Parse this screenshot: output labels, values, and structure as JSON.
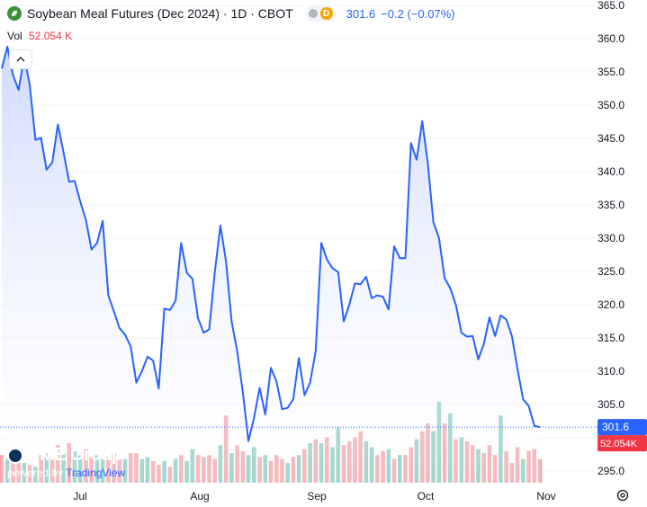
{
  "legend": {
    "title": "Soybean Meal Futures (Dec 2024) · 1D · CBOT",
    "price": "301.6",
    "change": "−0.2 (−0.07%)",
    "pill_letter": "D"
  },
  "volume": {
    "label": "Vol",
    "value": "52.054 K"
  },
  "logo": {
    "name": "CME Group",
    "powered": "powered by",
    "brand": "TradingView"
  },
  "icons": {
    "symbol": "leaf-icon",
    "collapse": "chevron-up-icon",
    "settings": "gear-icon"
  },
  "colors": {
    "line": "#2962ff",
    "area_top": "#c9d6fc",
    "vol_up": "#8ccdc3",
    "vol_down": "#f2a7ad",
    "last_price_bg": "#2962ff",
    "last_vol_bg": "#f23645"
  },
  "chart_data": {
    "type": "area",
    "price_axis": {
      "range": [
        293,
        365.5
      ],
      "ticks": [
        "365.0",
        "360.0",
        "355.0",
        "350.0",
        "345.0",
        "340.0",
        "335.0",
        "330.0",
        "325.0",
        "320.0",
        "315.0",
        "310.0",
        "305.0",
        "300.0",
        "295.0"
      ]
    },
    "time_axis": {
      "labels": [
        "Jul",
        "Aug",
        "Sep",
        "Oct",
        "Nov"
      ]
    },
    "last_price_label": "301.6",
    "last_volume_label": "52.054K",
    "series": [
      {
        "values": [
          355.5,
          358.8,
          354.5,
          352.3,
          357.3,
          353.0,
          344.8,
          345.1,
          340.3,
          341.4,
          347.1,
          343.0,
          338.5,
          338.6,
          335.5,
          332.8,
          328.3,
          329.3,
          332.6,
          321.4,
          319.0,
          316.5,
          315.5,
          313.7,
          308.3,
          310.0,
          312.2,
          311.6,
          307.4,
          319.4,
          319.2,
          320.6,
          329.3,
          324.8,
          323.9,
          318.0,
          315.8,
          316.3,
          324.9,
          331.9,
          326.5,
          317.5,
          313.0,
          306.8,
          299.5,
          303.0,
          307.5,
          303.5,
          310.5,
          308.5,
          304.3,
          304.5,
          305.8,
          312.0,
          306.4,
          308.3,
          313.0,
          329.3,
          326.8,
          325.5,
          324.9,
          317.5,
          320.0,
          323.2,
          323.1,
          324.2,
          321.0,
          321.4,
          321.2,
          319.3,
          328.8,
          327.0,
          327.0,
          344.3,
          341.8,
          347.6,
          341.3,
          332.4,
          330.0,
          324.0,
          322.5,
          320.0,
          315.8,
          315.2,
          315.3,
          311.8,
          314.1,
          318.1,
          315.3,
          318.4,
          317.8,
          315.3,
          310.3,
          305.8,
          304.8,
          301.8,
          301.6
        ]
      }
    ],
    "volume_series": [
      {
        "v": 14,
        "d": 1
      },
      {
        "v": 12,
        "d": 0
      },
      {
        "v": 13,
        "d": 1
      },
      {
        "v": 11,
        "d": 1
      },
      {
        "v": 10,
        "d": 0
      },
      {
        "v": 9,
        "d": 1
      },
      {
        "v": 8,
        "d": 0
      },
      {
        "v": 14,
        "d": 1
      },
      {
        "v": 15,
        "d": 0
      },
      {
        "v": 12,
        "d": 1
      },
      {
        "v": 19,
        "d": 1
      },
      {
        "v": 15,
        "d": 0
      },
      {
        "v": 20,
        "d": 1
      },
      {
        "v": 16,
        "d": 0
      },
      {
        "v": 15,
        "d": 0
      },
      {
        "v": 17,
        "d": 1
      },
      {
        "v": 13,
        "d": 1
      },
      {
        "v": 14,
        "d": 0
      },
      {
        "v": 12,
        "d": 0
      },
      {
        "v": 13,
        "d": 1
      },
      {
        "v": 15,
        "d": 1
      },
      {
        "v": 12,
        "d": 1
      },
      {
        "v": 12,
        "d": 0
      },
      {
        "v": 15,
        "d": 1
      },
      {
        "v": 15,
        "d": 1
      },
      {
        "v": 12,
        "d": 0
      },
      {
        "v": 13,
        "d": 0
      },
      {
        "v": 11,
        "d": 1
      },
      {
        "v": 9,
        "d": 1
      },
      {
        "v": 11,
        "d": 0
      },
      {
        "v": 8,
        "d": 1
      },
      {
        "v": 12,
        "d": 0
      },
      {
        "v": 14,
        "d": 1
      },
      {
        "v": 11,
        "d": 0
      },
      {
        "v": 17,
        "d": 0
      },
      {
        "v": 14,
        "d": 1
      },
      {
        "v": 13,
        "d": 1
      },
      {
        "v": 14,
        "d": 1
      },
      {
        "v": 12,
        "d": 1
      },
      {
        "v": 19,
        "d": 0
      },
      {
        "v": 34,
        "d": 1
      },
      {
        "v": 15,
        "d": 0
      },
      {
        "v": 19,
        "d": 1
      },
      {
        "v": 16,
        "d": 1
      },
      {
        "v": 14,
        "d": 0
      },
      {
        "v": 18,
        "d": 0
      },
      {
        "v": 13,
        "d": 1
      },
      {
        "v": 14,
        "d": 0
      },
      {
        "v": 11,
        "d": 1
      },
      {
        "v": 14,
        "d": 1
      },
      {
        "v": 12,
        "d": 1
      },
      {
        "v": 10,
        "d": 0
      },
      {
        "v": 13,
        "d": 1
      },
      {
        "v": 14,
        "d": 0
      },
      {
        "v": 17,
        "d": 1
      },
      {
        "v": 20,
        "d": 0
      },
      {
        "v": 22,
        "d": 1
      },
      {
        "v": 20,
        "d": 0
      },
      {
        "v": 23,
        "d": 1
      },
      {
        "v": 18,
        "d": 0
      },
      {
        "v": 28,
        "d": 0
      },
      {
        "v": 19,
        "d": 1
      },
      {
        "v": 21,
        "d": 1
      },
      {
        "v": 23,
        "d": 1
      },
      {
        "v": 26,
        "d": 1
      },
      {
        "v": 21,
        "d": 0
      },
      {
        "v": 18,
        "d": 0
      },
      {
        "v": 14,
        "d": 1
      },
      {
        "v": 16,
        "d": 1
      },
      {
        "v": 17,
        "d": 0
      },
      {
        "v": 12,
        "d": 1
      },
      {
        "v": 14,
        "d": 0
      },
      {
        "v": 14,
        "d": 1
      },
      {
        "v": 18,
        "d": 1
      },
      {
        "v": 22,
        "d": 0
      },
      {
        "v": 26,
        "d": 1
      },
      {
        "v": 30,
        "d": 1
      },
      {
        "v": 26,
        "d": 0
      },
      {
        "v": 41,
        "d": 0
      },
      {
        "v": 30,
        "d": 1
      },
      {
        "v": 35,
        "d": 0
      },
      {
        "v": 22,
        "d": 1
      },
      {
        "v": 23,
        "d": 0
      },
      {
        "v": 21,
        "d": 1
      },
      {
        "v": 19,
        "d": 1
      },
      {
        "v": 17,
        "d": 0
      },
      {
        "v": 15,
        "d": 1
      },
      {
        "v": 19,
        "d": 1
      },
      {
        "v": 14,
        "d": 1
      },
      {
        "v": 34,
        "d": 0
      },
      {
        "v": 16,
        "d": 1
      },
      {
        "v": 10,
        "d": 1
      },
      {
        "v": 18,
        "d": 1
      },
      {
        "v": 12,
        "d": 0
      },
      {
        "v": 16,
        "d": 1
      },
      {
        "v": 17,
        "d": 1
      },
      {
        "v": 12,
        "d": 1
      }
    ]
  }
}
